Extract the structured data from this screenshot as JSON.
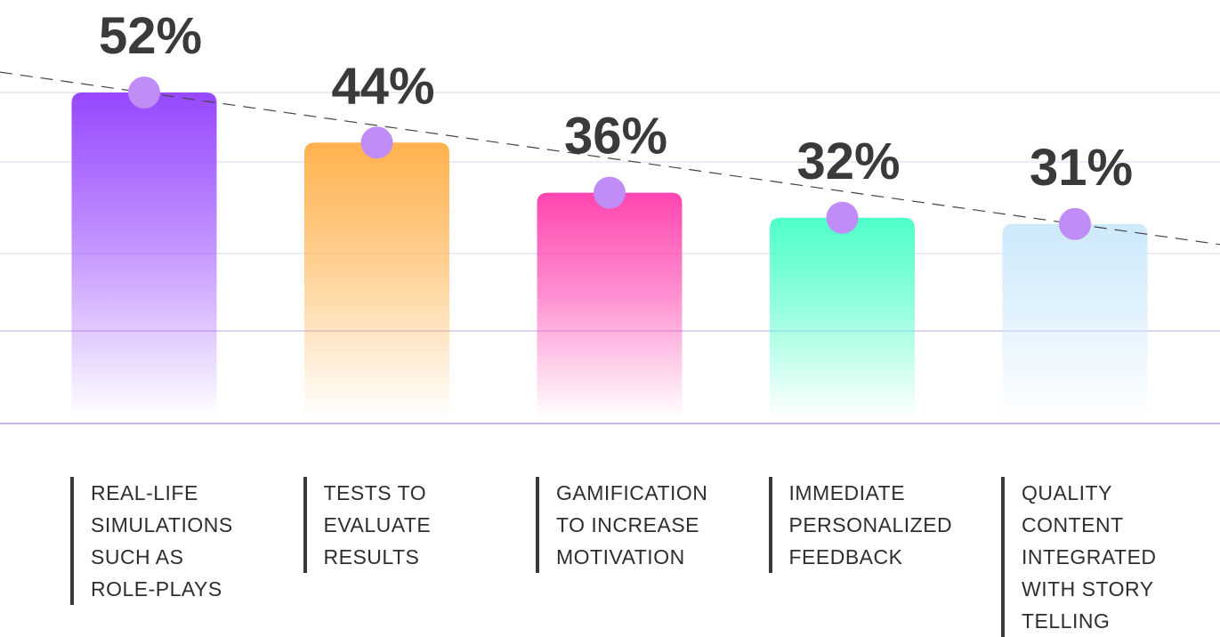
{
  "chart_data": {
    "type": "bar",
    "categories": [
      "REAL-LIFE\nSIMULATIONS\nSUCH AS\nROLE-PLAYS",
      "TESTS TO\nEVALUATE\nRESULTS",
      "GAMIFICATION\nTO INCREASE\nMOTIVATION",
      "IMMEDIATE\nPERSONALIZED\nFEEDBACK",
      "QUALITY\nCONTENT\nINTEGRATED\nWITH STORY\nTELLING"
    ],
    "values": [
      52,
      44,
      36,
      32,
      31
    ],
    "value_labels": [
      "52%",
      "44%",
      "36%",
      "32%",
      "31%"
    ],
    "unit": "%",
    "title": "",
    "xlabel": "",
    "ylabel": "",
    "ylim": [
      0,
      52
    ],
    "grid": true,
    "trend_line": "dashed",
    "colors": {
      "bars": [
        "#9747ff",
        "#ffb24d",
        "#ff45b0",
        "#4effc8",
        "#cde9fb"
      ],
      "marker": "#c08cf5",
      "trend": "#444444",
      "grid": "#e8e4f6",
      "axis": "#b89ae8",
      "text": "#3a3a3a"
    }
  }
}
